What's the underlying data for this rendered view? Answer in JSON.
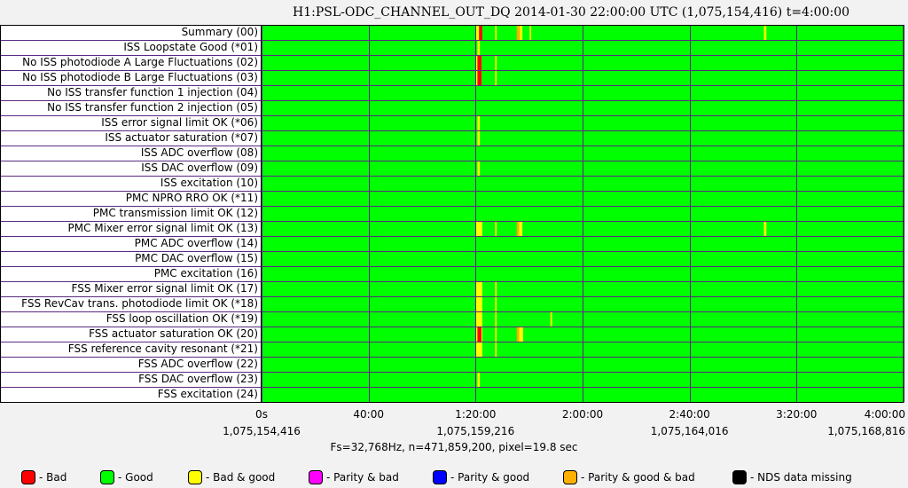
{
  "title": "H1:PSL-ODC_CHANNEL_OUT_DQ 2014-01-30 22:00:00 UTC (1,075,154,416) t=4:00:00",
  "chart_data": {
    "type": "heatmap",
    "title": "H1:PSL-ODC_CHANNEL_OUT_DQ 2014-01-30 22:00:00 UTC (1,075,154,416) t=4:00:00",
    "x_unit": "hours",
    "xlim": [
      0,
      4
    ],
    "x_ticks": [
      {
        "value": 0,
        "label": "0s",
        "gps": "1,075,154,416"
      },
      {
        "value": 0.6667,
        "label": "40:00",
        "gps": ""
      },
      {
        "value": 1.3333,
        "label": "1:20:00",
        "gps": "1,075,159,216"
      },
      {
        "value": 2.0,
        "label": "2:00:00",
        "gps": ""
      },
      {
        "value": 2.6667,
        "label": "2:40:00",
        "gps": "1,075,164,016"
      },
      {
        "value": 3.3333,
        "label": "3:20:00",
        "gps": ""
      },
      {
        "value": 4.0,
        "label": "4:00:00",
        "gps": "1,075,168,816"
      }
    ],
    "grid": true,
    "default_state": "good",
    "rows": [
      {
        "label": "Summary (00)",
        "segments": [
          {
            "start": 1.335,
            "end": 1.355,
            "state": "bad_good"
          },
          {
            "start": 1.355,
            "end": 1.375,
            "state": "bad"
          },
          {
            "start": 1.455,
            "end": 1.465,
            "state": "bad_good"
          },
          {
            "start": 1.59,
            "end": 1.61,
            "state": "parity_good_bad"
          },
          {
            "start": 1.61,
            "end": 1.625,
            "state": "bad_good"
          },
          {
            "start": 1.67,
            "end": 1.68,
            "state": "bad_good"
          },
          {
            "start": 3.13,
            "end": 3.145,
            "state": "bad_good"
          }
        ]
      },
      {
        "label": "ISS Loopstate Good (*01)",
        "segments": [
          {
            "start": 1.345,
            "end": 1.36,
            "state": "bad_good"
          }
        ]
      },
      {
        "label": "No ISS photodiode A Large Fluctuations (02)",
        "segments": [
          {
            "start": 1.335,
            "end": 1.345,
            "state": "bad_good"
          },
          {
            "start": 1.345,
            "end": 1.37,
            "state": "bad"
          },
          {
            "start": 1.455,
            "end": 1.465,
            "state": "bad_good"
          }
        ]
      },
      {
        "label": "No ISS photodiode B Large Fluctuations (03)",
        "segments": [
          {
            "start": 1.335,
            "end": 1.345,
            "state": "bad_good"
          },
          {
            "start": 1.345,
            "end": 1.37,
            "state": "bad"
          },
          {
            "start": 1.455,
            "end": 1.465,
            "state": "bad_good"
          }
        ]
      },
      {
        "label": "No ISS transfer function 1 injection (04)",
        "segments": []
      },
      {
        "label": "No ISS transfer function 2 injection (05)",
        "segments": []
      },
      {
        "label": "ISS error signal limit OK (*06)",
        "segments": [
          {
            "start": 1.345,
            "end": 1.36,
            "state": "bad_good"
          }
        ]
      },
      {
        "label": "ISS actuator saturation (*07)",
        "segments": [
          {
            "start": 1.345,
            "end": 1.36,
            "state": "bad_good"
          }
        ]
      },
      {
        "label": "ISS ADC overflow (08)",
        "segments": []
      },
      {
        "label": "ISS DAC overflow (09)",
        "segments": [
          {
            "start": 1.345,
            "end": 1.36,
            "state": "bad_good"
          }
        ]
      },
      {
        "label": "ISS excitation (10)",
        "segments": []
      },
      {
        "label": "PMC NPRO RRO OK (*11)",
        "segments": []
      },
      {
        "label": "PMC transmission limit OK (12)",
        "segments": []
      },
      {
        "label": "PMC Mixer error signal limit OK (13)",
        "segments": [
          {
            "start": 1.335,
            "end": 1.375,
            "state": "bad_good"
          },
          {
            "start": 1.455,
            "end": 1.465,
            "state": "bad_good"
          },
          {
            "start": 1.59,
            "end": 1.605,
            "state": "parity_good_bad"
          },
          {
            "start": 1.605,
            "end": 1.625,
            "state": "bad_good"
          },
          {
            "start": 3.13,
            "end": 3.145,
            "state": "bad_good"
          }
        ]
      },
      {
        "label": "PMC ADC overflow (14)",
        "segments": []
      },
      {
        "label": "PMC DAC overflow (15)",
        "segments": []
      },
      {
        "label": "PMC excitation (16)",
        "segments": []
      },
      {
        "label": "FSS Mixer error signal limit OK (17)",
        "segments": [
          {
            "start": 1.335,
            "end": 1.375,
            "state": "bad_good"
          },
          {
            "start": 1.455,
            "end": 1.465,
            "state": "bad_good"
          }
        ]
      },
      {
        "label": "FSS RevCav trans. photodiode limit OK (*18)",
        "segments": [
          {
            "start": 1.335,
            "end": 1.375,
            "state": "bad_good"
          },
          {
            "start": 1.455,
            "end": 1.465,
            "state": "bad_good"
          }
        ]
      },
      {
        "label": "FSS loop oscillation OK (*19)",
        "segments": [
          {
            "start": 1.335,
            "end": 1.375,
            "state": "bad_good"
          },
          {
            "start": 1.455,
            "end": 1.465,
            "state": "bad_good"
          },
          {
            "start": 1.8,
            "end": 1.81,
            "state": "bad_good"
          }
        ]
      },
      {
        "label": "FSS actuator saturation OK (20)",
        "segments": [
          {
            "start": 1.335,
            "end": 1.345,
            "state": "bad_good"
          },
          {
            "start": 1.345,
            "end": 1.37,
            "state": "bad"
          },
          {
            "start": 1.37,
            "end": 1.375,
            "state": "bad_good"
          },
          {
            "start": 1.455,
            "end": 1.465,
            "state": "bad_good"
          },
          {
            "start": 1.59,
            "end": 1.605,
            "state": "parity_good_bad"
          },
          {
            "start": 1.605,
            "end": 1.63,
            "state": "bad_good"
          }
        ]
      },
      {
        "label": "FSS reference cavity resonant (*21)",
        "segments": [
          {
            "start": 1.335,
            "end": 1.375,
            "state": "bad_good"
          },
          {
            "start": 1.455,
            "end": 1.465,
            "state": "bad_good"
          }
        ]
      },
      {
        "label": "FSS ADC overflow (22)",
        "segments": []
      },
      {
        "label": "FSS DAC overflow (23)",
        "segments": [
          {
            "start": 1.345,
            "end": 1.36,
            "state": "bad_good"
          }
        ]
      },
      {
        "label": "FSS excitation (24)",
        "segments": []
      }
    ]
  },
  "footer": {
    "info": "Fs=32,768Hz, n=471,859,200, pixel=19.8 sec"
  },
  "legend": [
    {
      "key": "bad",
      "label": "- Bad",
      "color": "#ff0000"
    },
    {
      "key": "good",
      "label": "- Good",
      "color": "#00ff00"
    },
    {
      "key": "bad_good",
      "label": "- Bad & good",
      "color": "#ffff00"
    },
    {
      "key": "parity_bad",
      "label": "- Parity & bad",
      "color": "#ff00ff"
    },
    {
      "key": "parity_good",
      "label": "- Parity & good",
      "color": "#0000ff"
    },
    {
      "key": "parity_good_bad",
      "label": "- Parity & good & bad",
      "color": "#ffb000"
    },
    {
      "key": "nds_missing",
      "label": "- NDS data missing",
      "color": "#000000"
    }
  ],
  "colors": {
    "grid": "#5a2a82",
    "frame": "#000000"
  }
}
